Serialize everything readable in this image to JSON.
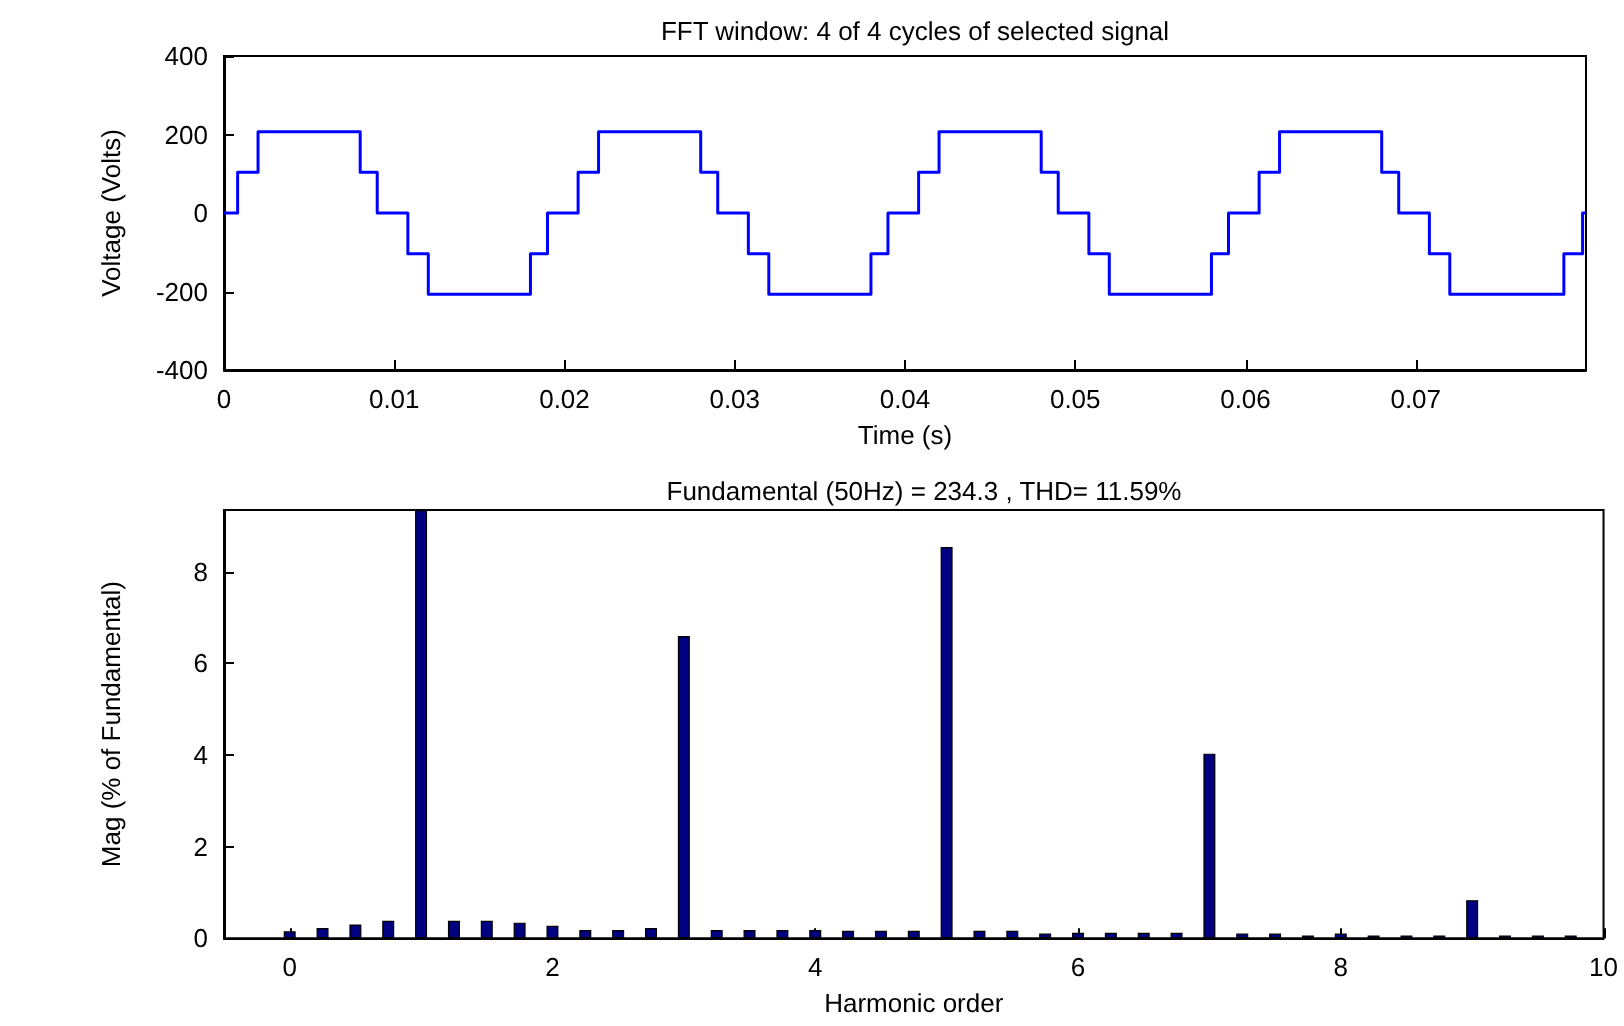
{
  "chart_data": [
    {
      "type": "step",
      "title": "FFT window: 4 of 4 cycles of selected signal",
      "xlabel": "Time (s)",
      "ylabel": "Voltage (Volts)",
      "x": [
        0,
        0.0008,
        0.002,
        0.008,
        0.009,
        0.0108,
        0.012,
        0.018,
        0.019,
        0.0208,
        0.022,
        0.028,
        0.029,
        0.0308,
        0.032,
        0.038,
        0.039,
        0.0408,
        0.042,
        0.048,
        0.049,
        0.0508,
        0.052,
        0.058,
        0.059,
        0.0608,
        0.062,
        0.068,
        0.069,
        0.0708,
        0.072,
        0.0787,
        0.0798,
        0.08
      ],
      "series": [
        {
          "color": "#0000ff",
          "values": [
            0,
            104,
            207,
            104,
            0,
            -104,
            -207,
            -104,
            0,
            104,
            207,
            104,
            0,
            -104,
            -207,
            -104,
            0,
            104,
            207,
            104,
            0,
            -104,
            -207,
            -104,
            0,
            104,
            207,
            104,
            0,
            -104,
            -207,
            -104,
            0,
            0
          ]
        }
      ],
      "xlim": [
        0,
        0.08
      ],
      "xticks": [
        0,
        0.01,
        0.02,
        0.03,
        0.04,
        0.05,
        0.06,
        0.07
      ],
      "ylim": [
        -400,
        400
      ],
      "yticks": [
        -400,
        -200,
        0,
        200,
        400
      ],
      "grid": false,
      "marker": "none",
      "line_style": "solid"
    },
    {
      "type": "bar",
      "title": "Fundamental (50Hz) = 234.3 , THD= 11.59%",
      "xlabel": "Harmonic order",
      "ylabel": "Mag (% of Fundamental)",
      "x": [
        0,
        0.25,
        0.5,
        0.75,
        1,
        1.25,
        1.5,
        1.75,
        2,
        2.25,
        2.5,
        2.75,
        3,
        3.25,
        3.5,
        3.75,
        4,
        4.25,
        4.5,
        4.75,
        5,
        5.25,
        5.5,
        5.75,
        6,
        6.25,
        6.5,
        6.75,
        7,
        7.25,
        7.5,
        7.75,
        8,
        8.25,
        8.5,
        8.75,
        9,
        9.25,
        9.5,
        9.75
      ],
      "series": [
        {
          "color": "#000080",
          "values": [
            0.15,
            0.22,
            0.3,
            0.38,
            9.35,
            0.38,
            0.38,
            0.34,
            0.27,
            0.18,
            0.18,
            0.22,
            6.6,
            0.18,
            0.18,
            0.18,
            0.18,
            0.16,
            0.16,
            0.16,
            8.54,
            0.16,
            0.16,
            0.1,
            0.12,
            0.12,
            0.12,
            0.12,
            4.03,
            0.1,
            0.1,
            0.06,
            0.1,
            0.06,
            0.06,
            0.06,
            0.83,
            0.06,
            0.06,
            0.06
          ]
        }
      ],
      "xlim": [
        -0.5,
        10
      ],
      "xticks": [
        0,
        2,
        4,
        6,
        8,
        10
      ],
      "ylim": [
        0,
        9.35
      ],
      "yticks": [
        0,
        2,
        4,
        6,
        8
      ],
      "grid": false
    }
  ]
}
